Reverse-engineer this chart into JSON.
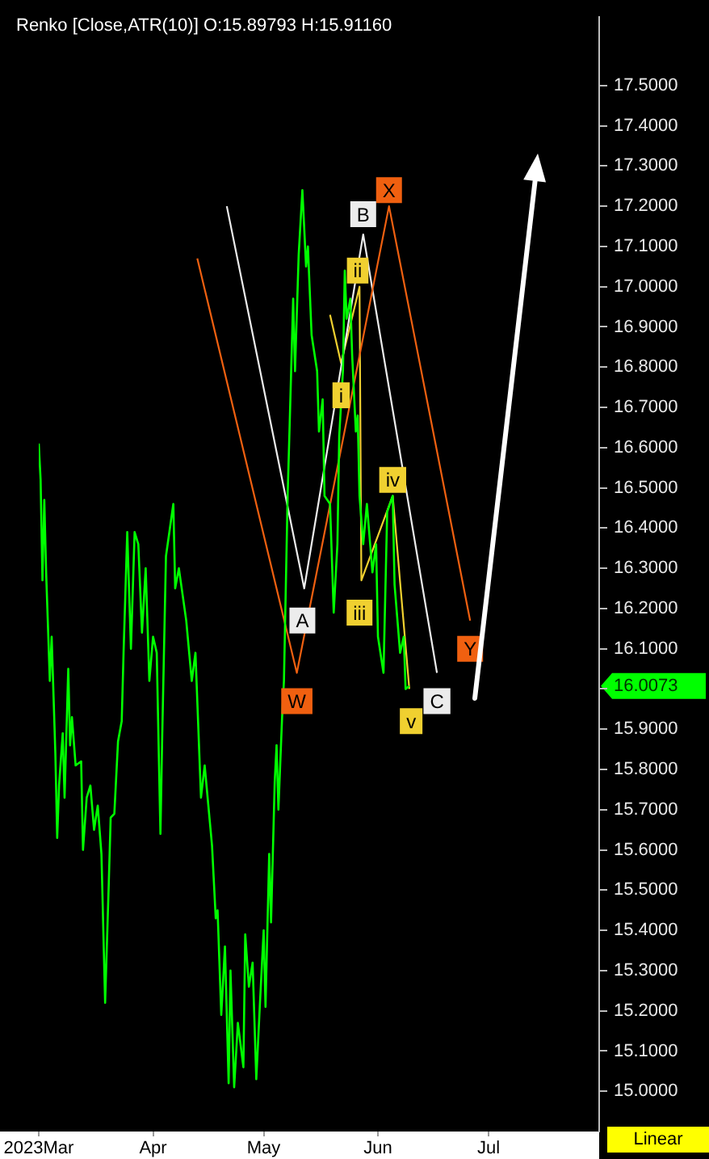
{
  "chart_data": {
    "type": "line",
    "title": "Renko [Close,ATR(10)] O:15.89793 H:15.91160",
    "marker": "none",
    "x": [
      "2023-03-01",
      "2023-03-01T12:00",
      "2023-03-02",
      "2023-03-02T12:00",
      "2023-03-03",
      "2023-03-04",
      "2023-03-04T12:00",
      "2023-03-05T12:00",
      "2023-03-06",
      "2023-03-06T12:00",
      "2023-03-07T12:00",
      "2023-03-08",
      "2023-03-09",
      "2023-03-09T12:00",
      "2023-03-10",
      "2023-03-11",
      "2023-03-12T12:00",
      "2023-03-13",
      "2023-03-14",
      "2023-03-15",
      "2023-03-16",
      "2023-03-17",
      "2023-03-18",
      "2023-03-19",
      "2023-03-20",
      "2023-03-20T12:00",
      "2023-03-21T12:00",
      "2023-03-22T12:00",
      "2023-03-23T12:00",
      "2023-03-24",
      "2023-03-25",
      "2023-03-26",
      "2023-03-27",
      "2023-03-28",
      "2023-03-29",
      "2023-03-30",
      "2023-03-31",
      "2023-04-01",
      "2023-04-02",
      "2023-04-03",
      "2023-04-03T12:00",
      "2023-04-04T12:00",
      "2023-04-06T12:00",
      "2023-04-07",
      "2023-04-08",
      "2023-04-10",
      "2023-04-11T12:00",
      "2023-04-12T12:00",
      "2023-04-13T12:00",
      "2023-04-14",
      "2023-04-15",
      "2023-04-17",
      "2023-04-18",
      "2023-04-18T12:00",
      "2023-04-19T12:00",
      "2023-04-20T12:00",
      "2023-04-21T12:00",
      "2023-04-22",
      "2023-04-23",
      "2023-04-24",
      "2023-04-25T12:00",
      "2023-04-26",
      "2023-04-27",
      "2023-04-28",
      "2023-04-29",
      "2023-04-30",
      "2023-05-01",
      "2023-05-01T12:00",
      "2023-05-02T12:00",
      "2023-05-03",
      "2023-05-04",
      "2023-05-04T12:00",
      "2023-05-05",
      "2023-05-06",
      "2023-05-06T12:00",
      "2023-05-07T12:00",
      "2023-05-08",
      "2023-05-09",
      "2023-05-09T12:00",
      "2023-05-10T12:00",
      "2023-05-11T12:00",
      "2023-05-12T12:00",
      "2023-05-13",
      "2023-05-14",
      "2023-05-15T12:00",
      "2023-05-16",
      "2023-05-17",
      "2023-05-17T12:00",
      "2023-05-19",
      "2023-05-20",
      "2023-05-21",
      "2023-05-21T12:00",
      "2023-05-22T12:00",
      "2023-05-23",
      "2023-05-23T12:00",
      "2023-05-24T12:00",
      "2023-05-25",
      "2023-05-26",
      "2023-05-26T12:00",
      "2023-05-27",
      "2023-05-28",
      "2023-05-29",
      "2023-05-30T12:00",
      "2023-05-31T12:00",
      "2023-06-01",
      "2023-06-02T12:00",
      "2023-06-03T12:00",
      "2023-06-05",
      "2023-06-05T12:00",
      "2023-06-07",
      "2023-06-08",
      "2023-06-08T12:00",
      "2023-06-09T12:00"
    ],
    "series": [
      {
        "color": "#00ff00",
        "values": [
          16.61,
          16.52,
          16.27,
          16.47,
          16.29,
          16.02,
          16.13,
          15.84,
          15.63,
          15.76,
          15.89,
          15.73,
          16.05,
          15.86,
          15.93,
          15.81,
          15.82,
          15.6,
          15.73,
          15.76,
          15.65,
          15.71,
          15.59,
          15.22,
          15.52,
          15.68,
          15.69,
          15.87,
          15.92,
          16.09,
          16.39,
          16.1,
          16.39,
          16.36,
          16.14,
          16.3,
          16.02,
          16.13,
          16.09,
          15.64,
          15.89,
          16.33,
          16.46,
          16.25,
          16.3,
          16.17,
          16.02,
          16.09,
          15.85,
          15.73,
          15.81,
          15.61,
          15.43,
          15.45,
          15.19,
          15.36,
          15.02,
          15.3,
          15.01,
          15.17,
          15.06,
          15.39,
          15.26,
          15.32,
          15.03,
          15.22,
          15.4,
          15.21,
          15.59,
          15.42,
          15.77,
          15.86,
          15.7,
          15.93,
          16.02,
          16.48,
          16.64,
          16.97,
          16.79,
          17.08,
          17.24,
          17.05,
          17.1,
          16.88,
          16.79,
          16.64,
          16.72,
          16.48,
          16.46,
          16.19,
          16.36,
          16.63,
          16.79,
          17.04,
          16.92,
          16.97,
          16.83,
          16.64,
          16.68,
          16.48,
          16.36,
          16.46,
          16.29,
          16.36,
          16.13,
          16.04,
          16.44,
          16.48,
          16.26,
          16.09,
          16.13,
          16.0,
          16.0073
        ]
      },
      {
        "color": "#f06010",
        "x": [
          "2023-04-13",
          "2023-05-10",
          "2023-06-04",
          "2023-06-26"
        ],
        "values": [
          17.07,
          16.04,
          17.2,
          16.17
        ]
      },
      {
        "color": "#ececec",
        "x": [
          "2023-04-21",
          "2023-05-12",
          "2023-05-28",
          "2023-06-17"
        ],
        "values": [
          17.2,
          16.25,
          17.13,
          16.04
        ]
      },
      {
        "color": "#f0d030",
        "x": [
          "2023-05-19",
          "2023-05-22",
          "2023-05-27",
          "2023-05-27T12:00",
          "2023-06-05",
          "2023-06-09T12:00"
        ],
        "values": [
          16.93,
          16.81,
          17.0,
          16.27,
          16.48,
          16.0
        ]
      }
    ],
    "xlim": [
      "2023-03-01",
      "2023-07-31"
    ],
    "xticks": [
      {
        "value": "2023-03-01",
        "label": "2023Mar"
      },
      {
        "value": "2023-04-01",
        "label": "Apr"
      },
      {
        "value": "2023-05-01",
        "label": "May"
      },
      {
        "value": "2023-06-01",
        "label": "Jun"
      },
      {
        "value": "2023-07-01",
        "label": "Jul"
      }
    ],
    "ylim": [
      14.9,
      17.67
    ],
    "yticks": [
      {
        "value": 15,
        "label": "15.0000"
      },
      {
        "value": 15.1,
        "label": "15.1000"
      },
      {
        "value": 15.2,
        "label": "15.2000"
      },
      {
        "value": 15.3,
        "label": "15.3000"
      },
      {
        "value": 15.4,
        "label": "15.4000"
      },
      {
        "value": 15.5,
        "label": "15.5000"
      },
      {
        "value": 15.6,
        "label": "15.6000"
      },
      {
        "value": 15.7,
        "label": "15.7000"
      },
      {
        "value": 15.8,
        "label": "15.8000"
      },
      {
        "value": 15.9,
        "label": "15.9000"
      },
      {
        "value": 16,
        "label": null
      },
      16.0073,
      {
        "value": 16.1,
        "label": "16.1000"
      },
      {
        "value": 16.2,
        "label": "16.2000"
      },
      {
        "value": 16.3,
        "label": "16.3000"
      },
      {
        "value": 16.4,
        "label": "16.4000"
      },
      {
        "value": 16.5,
        "label": "16.5000"
      },
      {
        "value": 16.6,
        "label": "16.6000"
      },
      {
        "value": 16.7,
        "label": "16.7000"
      },
      {
        "value": 16.8,
        "label": "16.8000"
      },
      {
        "value": 16.9,
        "label": "16.9000"
      },
      {
        "value": 17,
        "label": "17.0000"
      },
      {
        "value": 17.1,
        "label": "17.1000"
      },
      {
        "value": 17.2,
        "label": "17.2000"
      },
      {
        "value": 17.3,
        "label": "17.3000"
      },
      {
        "value": 17.4,
        "label": "17.4000"
      },
      {
        "value": 17.5,
        "label": "17.5000"
      }
    ],
    "annotations": [
      {
        "text": "W",
        "x": "2023-05-10",
        "y": 15.97
      },
      {
        "text": "X",
        "x": "2023-06-04",
        "y": 17.24
      },
      {
        "text": "Y",
        "x": "2023-06-26",
        "y": 16.1
      },
      {
        "text": "A",
        "x": "2023-05-11T12:00",
        "y": 16.17
      },
      {
        "text": "B",
        "x": "2023-05-28",
        "y": 17.18
      },
      {
        "text": "C",
        "x": "2023-06-17",
        "y": 15.97
      },
      {
        "text": "i",
        "x": "2023-05-22",
        "y": 16.73
      },
      {
        "text": "ii",
        "x": "2023-05-26T12:00",
        "y": 17.04
      },
      {
        "text": "iii",
        "x": "2023-05-27",
        "y": 16.19
      },
      {
        "text": "iv",
        "x": "2023-06-05",
        "y": 16.52
      },
      {
        "text": "v",
        "x": "2023-06-10",
        "y": 15.92
      },
      "Linear"
    ]
  }
}
